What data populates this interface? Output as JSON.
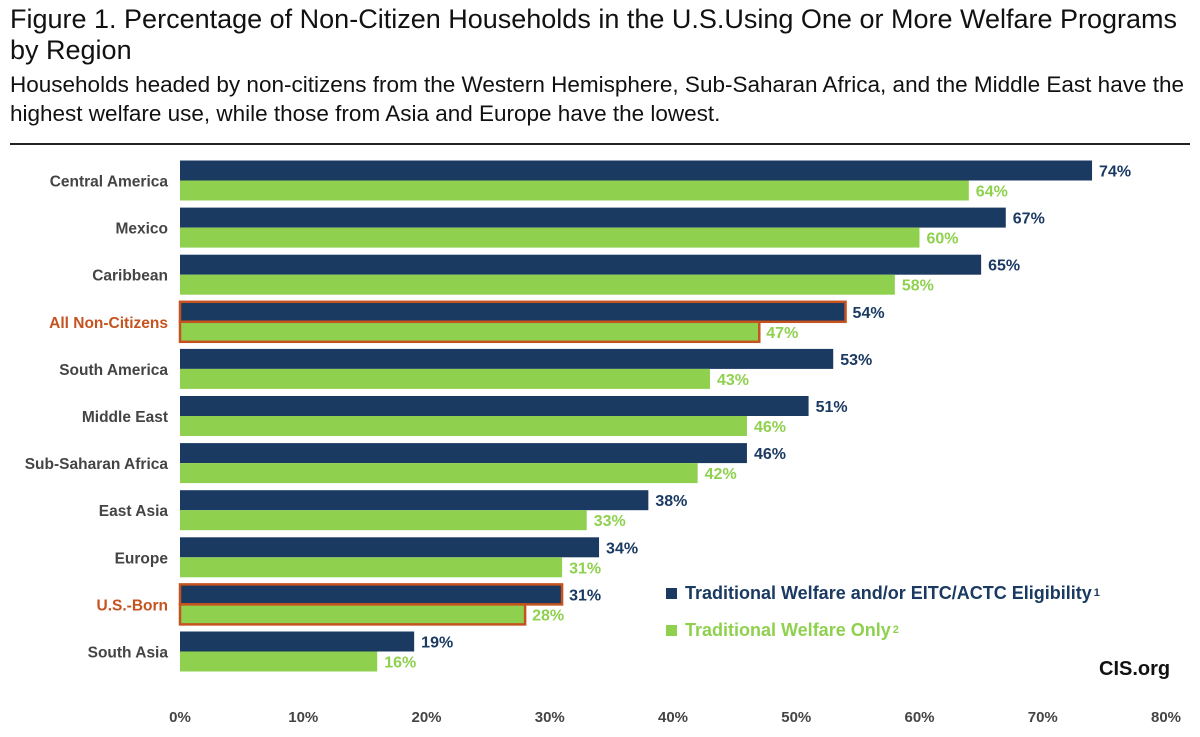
{
  "header": {
    "title": "Figure 1. Percentage of Non-Citizen Households in the U.S.Using One or More Welfare Programs by Region",
    "subtitle": "Households headed by non-citizens from the Western Hemisphere, Sub-Saharan Africa, and the Middle East have the highest welfare use, while those from Asia and Europe have the lowest."
  },
  "source": "CIS.org",
  "colors": {
    "series1": "#1b3a62",
    "series2": "#8fd14f",
    "highlight_text": "#c5531f",
    "highlight_border": "#c5531f",
    "axis_text": "#444444",
    "label_text": "#444444"
  },
  "legend": {
    "items": [
      {
        "label": "Traditional Welfare and/or EITC/ACTC Eligibility",
        "sup": "1"
      },
      {
        "label": "Traditional Welfare Only",
        "sup": "2"
      }
    ]
  },
  "chart_data": {
    "type": "bar",
    "orientation": "horizontal",
    "categories": [
      "Central America",
      "Mexico",
      "Caribbean",
      "All Non-Citizens",
      "South America",
      "Middle East",
      "Sub-Saharan Africa",
      "East Asia",
      "Europe",
      "U.S.-Born",
      "South Asia"
    ],
    "highlighted": [
      "All Non-Citizens",
      "U.S.-Born"
    ],
    "series": [
      {
        "name": "Traditional Welfare and/or EITC/ACTC Eligibility",
        "values": [
          74,
          67,
          65,
          54,
          53,
          51,
          46,
          38,
          34,
          31,
          19
        ]
      },
      {
        "name": "Traditional Welfare Only",
        "values": [
          64,
          60,
          58,
          47,
          43,
          46,
          42,
          33,
          31,
          28,
          16
        ]
      }
    ],
    "value_labels": [
      [
        "74%",
        "67%",
        "65%",
        "54%",
        "53%",
        "51%",
        "46%",
        "38%",
        "34%",
        "31%",
        "19%"
      ],
      [
        "64%",
        "60%",
        "58%",
        "47%",
        "43%",
        "46%",
        "42%",
        "33%",
        "31%",
        "28%",
        "16%"
      ]
    ],
    "xlim": [
      0,
      80
    ],
    "xticks": [
      0,
      10,
      20,
      30,
      40,
      50,
      60,
      70,
      80
    ],
    "xtick_labels": [
      "0%",
      "10%",
      "20%",
      "30%",
      "40%",
      "50%",
      "60%",
      "70%",
      "80%"
    ],
    "grid": false,
    "legend_position": "bottom-right"
  }
}
